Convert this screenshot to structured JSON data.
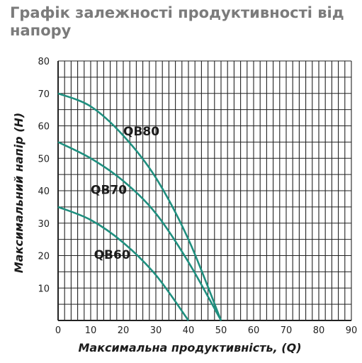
{
  "title": "Графік залежності продуктивності від напору",
  "chart_data": {
    "type": "line",
    "title": "Графік залежності продуктивності від напору",
    "xlabel": "Максимальна продуктивність, (Q)",
    "ylabel": "Максимальний напір (H)",
    "xlim": [
      0,
      90
    ],
    "ylim": [
      0,
      80
    ],
    "x_ticks": [
      0,
      10,
      20,
      30,
      40,
      50,
      60,
      70,
      80,
      90
    ],
    "y_ticks": [
      10,
      20,
      30,
      40,
      50,
      60,
      70,
      80
    ],
    "grid": true,
    "line_color": "#1f8f7f",
    "series": [
      {
        "name": "QB80",
        "x": [
          0,
          10,
          20,
          30,
          40,
          50
        ],
        "y": [
          70,
          66,
          57,
          44,
          25,
          0
        ]
      },
      {
        "name": "QB70",
        "x": [
          0,
          10,
          20,
          30,
          40,
          50
        ],
        "y": [
          55,
          50,
          43,
          33,
          18,
          0
        ]
      },
      {
        "name": "QB60",
        "x": [
          0,
          10,
          20,
          30,
          40
        ],
        "y": [
          35,
          31,
          24,
          14,
          0
        ]
      }
    ]
  }
}
